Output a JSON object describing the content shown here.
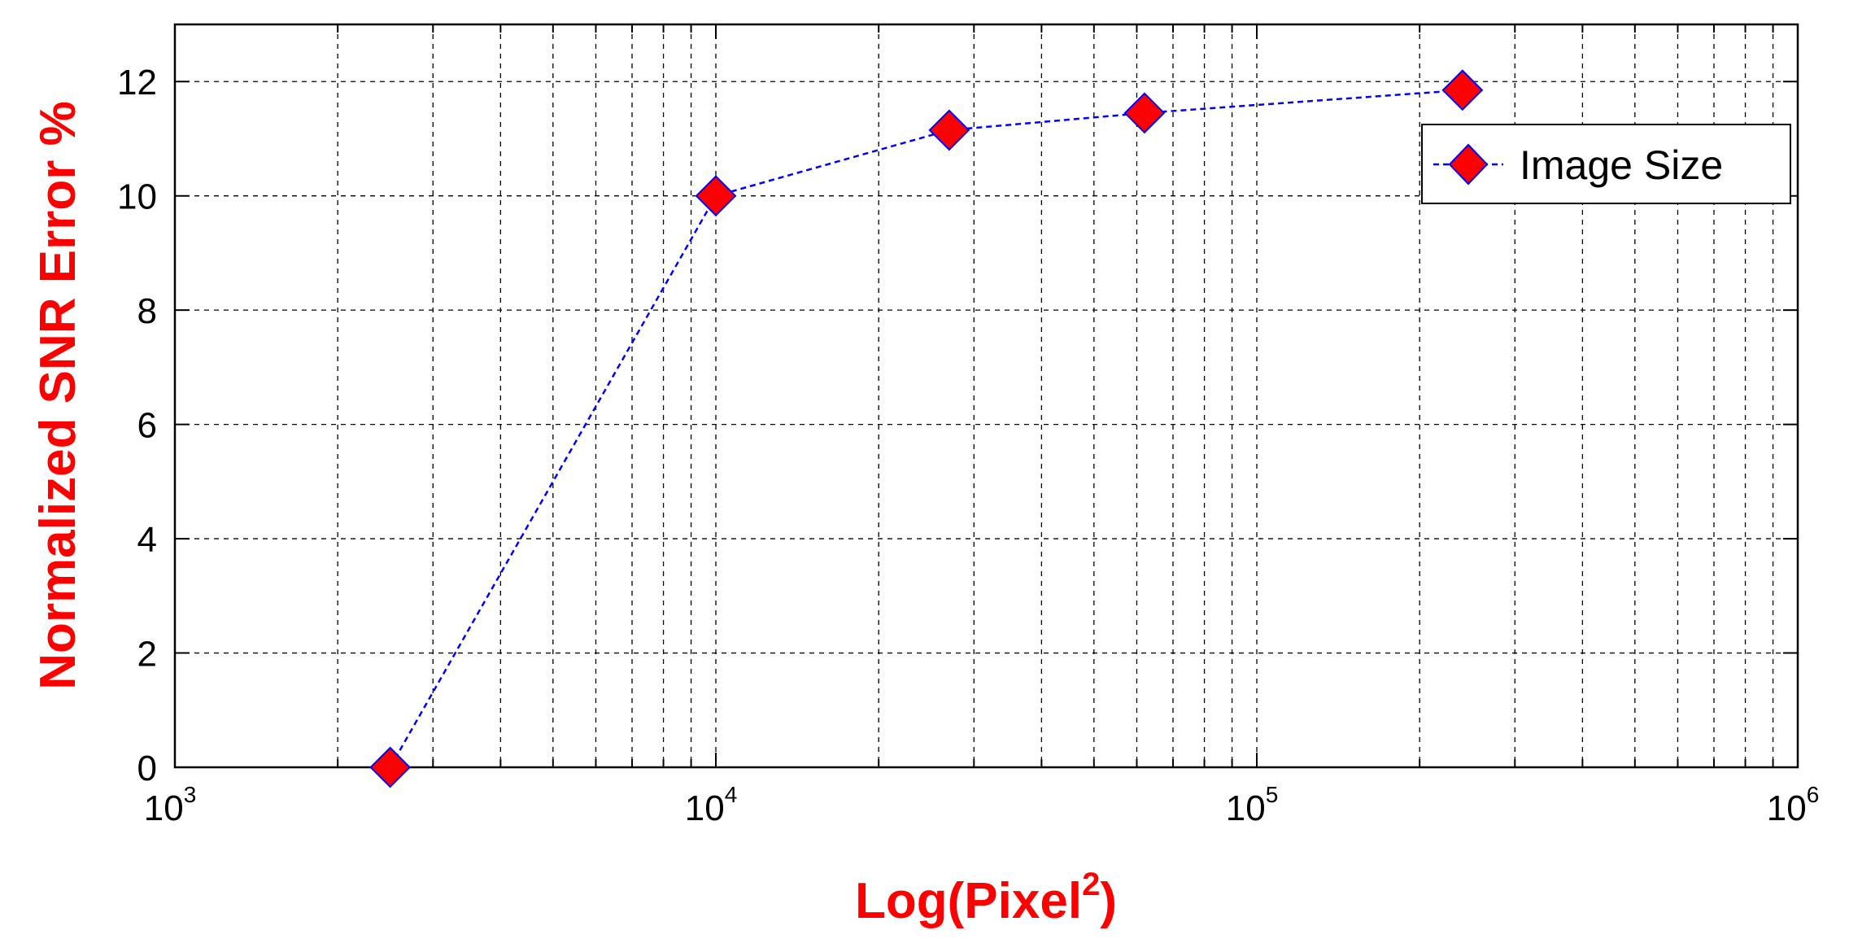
{
  "chart_data": {
    "type": "line",
    "title": "",
    "xlabel": "Log(Pixel",
    "xlabel_sup": "2",
    "xlabel_close": ")",
    "ylabel": "Normalized SNR Error %",
    "xscale": "log",
    "xlim": [
      1000,
      1000000
    ],
    "ylim": [
      0,
      13
    ],
    "grid": true,
    "legend_position": "top-right",
    "x_ticks": [
      {
        "base": "10",
        "exp": "3"
      },
      {
        "base": "10",
        "exp": "4"
      },
      {
        "base": "10",
        "exp": "5"
      },
      {
        "base": "10",
        "exp": "6"
      }
    ],
    "y_ticks": [
      "0",
      "2",
      "4",
      "6",
      "8",
      "10",
      "12"
    ],
    "series": [
      {
        "name": "Image Size",
        "line_color": "#0000ff",
        "marker_color": "#ff0000",
        "marker": "diamond",
        "line_style": "dashed",
        "x": [
          2500,
          10000,
          27000,
          62000,
          240000
        ],
        "y": [
          0,
          10.0,
          11.15,
          11.45,
          11.85
        ]
      }
    ]
  }
}
